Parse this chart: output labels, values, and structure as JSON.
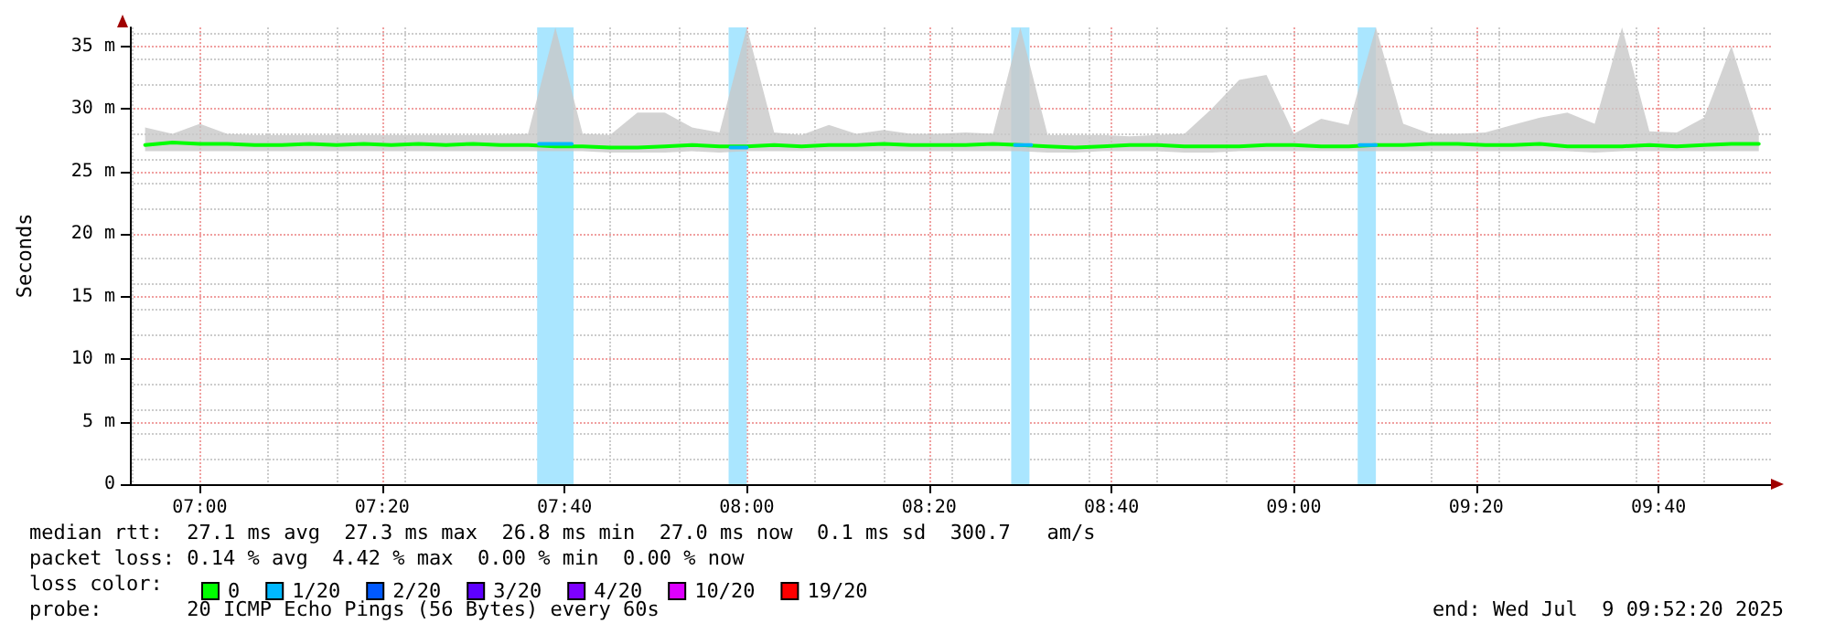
{
  "chart_data": {
    "type": "line",
    "ylabel": "Seconds",
    "x": [
      6.9,
      6.95,
      7.0,
      7.05,
      7.1,
      7.15,
      7.2,
      7.25,
      7.3,
      7.35,
      7.4,
      7.45,
      7.5,
      7.55,
      7.6,
      7.65,
      7.7,
      7.75,
      7.8,
      7.85,
      7.9,
      7.95,
      8.0,
      8.05,
      8.1,
      8.15,
      8.2,
      8.25,
      8.3,
      8.35,
      8.4,
      8.45,
      8.5,
      8.55,
      8.6,
      8.65,
      8.7,
      8.75,
      8.8,
      8.85,
      8.9,
      8.95,
      9.0,
      9.05,
      9.1,
      9.15,
      9.2,
      9.25,
      9.3,
      9.35,
      9.4,
      9.45,
      9.5,
      9.55,
      9.6,
      9.65,
      9.7,
      9.75,
      9.8,
      9.85
    ],
    "series": [
      {
        "name": "0",
        "color": "#00ff00",
        "values": [
          27.1,
          27.3,
          27.2,
          27.2,
          27.1,
          27.1,
          27.2,
          27.1,
          27.2,
          27.1,
          27.2,
          27.1,
          27.2,
          27.1,
          27.1,
          27.0,
          27.0,
          26.9,
          26.9,
          27.0,
          27.1,
          27.0,
          27.0,
          27.1,
          27.0,
          27.1,
          27.1,
          27.2,
          27.1,
          27.1,
          27.1,
          27.2,
          27.1,
          27.0,
          26.9,
          27.0,
          27.1,
          27.1,
          27.0,
          27.0,
          27.0,
          27.1,
          27.1,
          27.0,
          27.0,
          27.1,
          27.1,
          27.2,
          27.2,
          27.1,
          27.1,
          27.2,
          27.0,
          27.0,
          27.0,
          27.1,
          27.0,
          27.1,
          27.2,
          27.2
        ],
        "lower": [
          26.6,
          26.6,
          26.6,
          26.6,
          26.6,
          26.6,
          26.6,
          26.6,
          26.6,
          26.6,
          26.6,
          26.6,
          26.6,
          26.6,
          26.6,
          26.6,
          26.6,
          26.5,
          26.5,
          26.5,
          26.6,
          26.5,
          26.6,
          26.6,
          26.6,
          26.6,
          26.6,
          26.6,
          26.6,
          26.6,
          26.6,
          26.6,
          26.6,
          26.5,
          26.5,
          26.6,
          26.6,
          26.6,
          26.5,
          26.5,
          26.6,
          26.6,
          26.6,
          26.6,
          26.6,
          26.6,
          26.6,
          26.6,
          26.6,
          26.6,
          26.6,
          26.6,
          26.6,
          26.5,
          26.6,
          26.6,
          26.6,
          26.6,
          26.6,
          26.6
        ],
        "upper": [
          28.5,
          28.0,
          28.8,
          28.0,
          27.9,
          27.9,
          27.9,
          27.9,
          27.9,
          27.9,
          27.9,
          27.9,
          27.9,
          27.9,
          28.0,
          36.5,
          28.0,
          27.9,
          29.7,
          29.7,
          28.5,
          28.1,
          36.5,
          28.1,
          27.9,
          28.7,
          28.0,
          28.3,
          28.0,
          28.0,
          28.1,
          28.0,
          36.5,
          27.9,
          27.9,
          27.9,
          27.8,
          27.9,
          28.0,
          30.0,
          32.3,
          32.7,
          28.0,
          29.2,
          28.7,
          36.5,
          28.8,
          28.0,
          28.0,
          28.1,
          28.7,
          29.3,
          29.7,
          28.8,
          36.5,
          28.2,
          28.1,
          29.3,
          35.0,
          28.1
        ]
      },
      {
        "name": "1/20",
        "color": "#00b8ff",
        "x": [
          7.62,
          7.68,
          null,
          7.97,
          8.0,
          null,
          8.49,
          8.52,
          null,
          9.12,
          9.15
        ],
        "values": [
          27.2,
          27.2,
          null,
          26.9,
          26.9,
          null,
          27.1,
          27.1,
          null,
          27.1,
          27.1
        ]
      },
      {
        "name": "2/20",
        "color": "#0059ff",
        "values": [
          null,
          null,
          null,
          null,
          null,
          null,
          null,
          null,
          null,
          null,
          null,
          null,
          null,
          null,
          null,
          null,
          null,
          null,
          null,
          null,
          null,
          null,
          null,
          null,
          null,
          null,
          null,
          null,
          null,
          null,
          null,
          null,
          null,
          null,
          null,
          null,
          null,
          null,
          null,
          null,
          null,
          null,
          null,
          null,
          null,
          null,
          null,
          null,
          null,
          null,
          null,
          null,
          null,
          null,
          null,
          null,
          null,
          null,
          null,
          null
        ]
      },
      {
        "name": "3/20",
        "color": "#5e00ff",
        "values": [
          null,
          null,
          null,
          null,
          null,
          null,
          null,
          null,
          null,
          null,
          null,
          null,
          null,
          null,
          null,
          null,
          null,
          null,
          null,
          null,
          null,
          null,
          null,
          null,
          null,
          null,
          null,
          null,
          null,
          null,
          null,
          null,
          null,
          null,
          null,
          null,
          null,
          null,
          null,
          null,
          null,
          null,
          null,
          null,
          null,
          null,
          null,
          null,
          null,
          null,
          null,
          null,
          null,
          null,
          null,
          null,
          null,
          null,
          null,
          null
        ]
      },
      {
        "name": "4/20",
        "color": "#7e00ff",
        "values": [
          null,
          null,
          null,
          null,
          null,
          null,
          null,
          null,
          null,
          null,
          null,
          null,
          null,
          null,
          null,
          null,
          null,
          null,
          null,
          null,
          null,
          null,
          null,
          null,
          null,
          null,
          null,
          null,
          null,
          null,
          null,
          null,
          null,
          null,
          null,
          null,
          null,
          null,
          null,
          null,
          null,
          null,
          null,
          null,
          null,
          null,
          null,
          null,
          null,
          null,
          null,
          null,
          null,
          null,
          null,
          null,
          null,
          null,
          null,
          null
        ]
      },
      {
        "name": "10/20",
        "color": "#dd00ff",
        "values": [
          null,
          null,
          null,
          null,
          null,
          null,
          null,
          null,
          null,
          null,
          null,
          null,
          null,
          null,
          null,
          null,
          null,
          null,
          null,
          null,
          null,
          null,
          null,
          null,
          null,
          null,
          null,
          null,
          null,
          null,
          null,
          null,
          null,
          null,
          null,
          null,
          null,
          null,
          null,
          null,
          null,
          null,
          null,
          null,
          null,
          null,
          null,
          null,
          null,
          null,
          null,
          null,
          null,
          null,
          null,
          null,
          null,
          null,
          null,
          null
        ]
      },
      {
        "name": "19/20",
        "color": "#ff0000",
        "values": [
          null,
          null,
          null,
          null,
          null,
          null,
          null,
          null,
          null,
          null,
          null,
          null,
          null,
          null,
          null,
          null,
          null,
          null,
          null,
          null,
          null,
          null,
          null,
          null,
          null,
          null,
          null,
          null,
          null,
          null,
          null,
          null,
          null,
          null,
          null,
          null,
          null,
          null,
          null,
          null,
          null,
          null,
          null,
          null,
          null,
          null,
          null,
          null,
          null,
          null,
          null,
          null,
          null,
          null,
          null,
          null,
          null,
          null,
          null,
          null
        ]
      }
    ],
    "bands": [
      {
        "axis": "x",
        "from": 7.6167,
        "to": 7.6833,
        "color": "#aae6ff"
      },
      {
        "axis": "x",
        "from": 7.9667,
        "to": 8.0,
        "color": "#aae6ff"
      },
      {
        "axis": "x",
        "from": 8.4833,
        "to": 8.5167,
        "color": "#aae6ff"
      },
      {
        "axis": "x",
        "from": 9.1167,
        "to": 9.15,
        "color": "#aae6ff"
      }
    ],
    "xlim": [
      6.8722,
      9.8722
    ],
    "xticks": [
      {
        "value": 7.0,
        "label": "07:00"
      },
      {
        "value": 7.3333,
        "label": "07:20"
      },
      {
        "value": 7.6667,
        "label": "07:40"
      },
      {
        "value": 8.0,
        "label": "08:00"
      },
      {
        "value": 8.3333,
        "label": "08:20"
      },
      {
        "value": 8.6667,
        "label": "08:40"
      },
      {
        "value": 9.0,
        "label": "09:00"
      },
      {
        "value": 9.3333,
        "label": "09:20"
      },
      {
        "value": 9.6667,
        "label": "09:40"
      }
    ],
    "ylim": [
      0,
      36.5
    ],
    "yticks": [
      0,
      {
        "value": 5,
        "label": "5 m"
      },
      {
        "value": 10,
        "label": "10 m"
      },
      {
        "value": 15,
        "label": "15 m"
      },
      {
        "value": 20,
        "label": "20 m"
      },
      {
        "value": 25,
        "label": "25 m"
      },
      {
        "value": 30,
        "label": "30 m"
      },
      {
        "value": 35,
        "label": "35 m"
      }
    ],
    "grid": true,
    "legend": "bottom left",
    "marker": "none",
    "line_style": "solid",
    "annotations": [
      "median rtt:  27.1 ms avg  27.3 ms max  26.8 ms min  27.0 ms now  0.1 ms sd  300.7   am/s",
      "packet loss: 0.14 % avg  4.42 % max  0.00 % min  0.00 % now",
      "loss color:",
      "probe:       20 ICMP Echo Pings (56 Bytes) every 60s",
      "end: Wed Jul  9 09:52:20 2025"
    ]
  }
}
